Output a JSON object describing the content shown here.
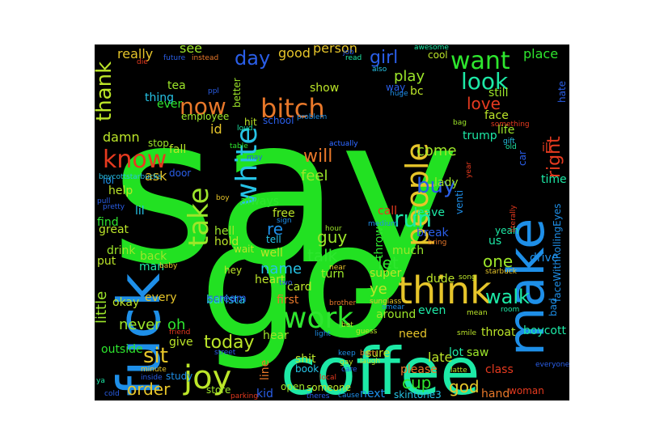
{
  "colors": {
    "background": "#000000",
    "page": "#ffffff",
    "palette": [
      "#2ee62e",
      "#1de9a6",
      "#bce629",
      "#e6c52a",
      "#e8782a",
      "#e63a1f",
      "#1e8fe8",
      "#2a5ee8",
      "#26c3e6",
      "#9de62a"
    ]
  },
  "words": [
    {
      "text": "say",
      "color": "#22e122"
    },
    {
      "text": "go",
      "color": "#22e122"
    },
    {
      "text": "coffee",
      "color": "#1de9a6"
    },
    {
      "text": "fuck",
      "color": "#1e8fe8"
    },
    {
      "text": "make",
      "color": "#1e8fe8"
    },
    {
      "text": "think",
      "color": "#e6c52a"
    },
    {
      "text": "people",
      "color": "#e6c52a"
    },
    {
      "text": "white",
      "color": "#26c3e6"
    },
    {
      "text": "take",
      "color": "#9de62a"
    },
    {
      "text": "work",
      "color": "#2ee62e"
    },
    {
      "text": "joy",
      "color": "#bce629"
    },
    {
      "text": "bitch",
      "color": "#e8782a"
    },
    {
      "text": "know",
      "color": "#e63a1f"
    },
    {
      "text": "want",
      "color": "#2ee62e"
    },
    {
      "text": "look",
      "color": "#1de9a6"
    },
    {
      "text": "now",
      "color": "#e8782a"
    },
    {
      "text": "run",
      "color": "#1de9a6"
    },
    {
      "text": "buy",
      "color": "#2a5ee8"
    },
    {
      "text": "sit",
      "color": "#e6c52a"
    },
    {
      "text": "right",
      "color": "#e63a1f"
    },
    {
      "text": "walk",
      "color": "#1de9a6"
    },
    {
      "text": "thank",
      "color": "#bce629"
    },
    {
      "text": "day",
      "color": "#2a5ee8"
    },
    {
      "text": "girl",
      "color": "#2a5ee8"
    },
    {
      "text": "love",
      "color": "#e63a1f"
    },
    {
      "text": "will",
      "color": "#e8782a"
    },
    {
      "text": "today",
      "color": "#bce629"
    },
    {
      "text": "order",
      "color": "#e6c52a"
    },
    {
      "text": "guy",
      "color": "#9de62a"
    },
    {
      "text": "talk",
      "color": "#2ee62e"
    },
    {
      "text": "let",
      "color": "#2ee62e"
    },
    {
      "text": "cup",
      "color": "#2ee62e"
    },
    {
      "text": "god",
      "color": "#e6c52a"
    },
    {
      "text": "place",
      "color": "#2ee62e"
    },
    {
      "text": "play",
      "color": "#9de62a"
    },
    {
      "text": "feel",
      "color": "#9de62a"
    },
    {
      "text": "come",
      "color": "#9de62a"
    },
    {
      "text": "name",
      "color": "#26c3e6"
    },
    {
      "text": "re",
      "color": "#1e8fe8"
    },
    {
      "text": "one",
      "color": "#9de62a"
    },
    {
      "text": "ye",
      "color": "#bce629"
    },
    {
      "text": "oh",
      "color": "#2ee62e"
    },
    {
      "text": "never",
      "color": "#9de62a"
    },
    {
      "text": "little",
      "color": "#9de62a"
    },
    {
      "text": "damn",
      "color": "#bce629"
    },
    {
      "text": "ask",
      "color": "#e6c52a"
    },
    {
      "text": "really",
      "color": "#e6c52a"
    },
    {
      "text": "see",
      "color": "#9de62a"
    },
    {
      "text": "good",
      "color": "#e6c52a"
    },
    {
      "text": "person",
      "color": "#e6c52a"
    },
    {
      "text": "id",
      "color": "#e6c52a"
    },
    {
      "text": "break",
      "color": "#2a5ee8"
    },
    {
      "text": "late",
      "color": "#bce629"
    },
    {
      "text": "hand",
      "color": "#e8782a"
    },
    {
      "text": "next",
      "color": "#1e8fe8"
    },
    {
      "text": "kid",
      "color": "#2a5ee8"
    },
    {
      "text": "boycott",
      "color": "#1de9a6"
    },
    {
      "text": "throat",
      "color": "#bce629"
    },
    {
      "text": "drive",
      "color": "#1e8fe8"
    },
    {
      "text": "lot",
      "color": "#1de9a6"
    },
    {
      "text": "us",
      "color": "#1de9a6"
    },
    {
      "text": "yeah",
      "color": "#1de9a6"
    },
    {
      "text": "line",
      "color": "#e8782a"
    },
    {
      "text": "trump",
      "color": "#1de9a6"
    },
    {
      "text": "barista",
      "color": "#26c3e6"
    },
    {
      "text": "scream",
      "color": "#2a5ee8"
    },
    {
      "text": "first",
      "color": "#e8782a"
    },
    {
      "text": "card",
      "color": "#bce629"
    },
    {
      "text": "hell",
      "color": "#9de62a"
    },
    {
      "text": "hold",
      "color": "#bce629"
    },
    {
      "text": "free",
      "color": "#bce629"
    },
    {
      "text": "tell",
      "color": "#26c3e6"
    },
    {
      "text": "well",
      "color": "#bce629"
    },
    {
      "text": "hey",
      "color": "#bce629"
    },
    {
      "text": "heart",
      "color": "#bce629"
    },
    {
      "text": "turn",
      "color": "#9de62a"
    },
    {
      "text": "much",
      "color": "#9de62a"
    },
    {
      "text": "super",
      "color": "#bce629"
    },
    {
      "text": "dude",
      "color": "#bce629"
    },
    {
      "text": "throw",
      "color": "#2ee62e"
    },
    {
      "text": "call",
      "color": "#e63a1f"
    },
    {
      "text": "leave",
      "color": "#1de9a6"
    },
    {
      "text": "venti",
      "color": "#1e8fe8"
    },
    {
      "text": "lady",
      "color": "#9de62a"
    },
    {
      "text": "even",
      "color": "#1de9a6"
    },
    {
      "text": "around",
      "color": "#9de62a"
    },
    {
      "text": "need",
      "color": "#e6c52a"
    },
    {
      "text": "please",
      "color": "#e8782a"
    },
    {
      "text": "sure",
      "color": "#bce629"
    },
    {
      "text": "saw",
      "color": "#9de62a"
    },
    {
      "text": "class",
      "color": "#e63a1f"
    },
    {
      "text": "woman",
      "color": "#e63a1f"
    },
    {
      "text": "life",
      "color": "#9de62a"
    },
    {
      "text": "time",
      "color": "#1de9a6"
    },
    {
      "text": "ill",
      "color": "#e63a1f"
    },
    {
      "text": "car",
      "color": "#2a5ee8"
    },
    {
      "text": "face",
      "color": "#bce629"
    },
    {
      "text": "still",
      "color": "#9de62a"
    },
    {
      "text": "bc",
      "color": "#bce629"
    },
    {
      "text": "way",
      "color": "#2a5ee8"
    },
    {
      "text": "hate",
      "color": "#2a5ee8"
    },
    {
      "text": "show",
      "color": "#bce629"
    },
    {
      "text": "cool",
      "color": "#bce629"
    },
    {
      "text": "employee",
      "color": "#9de62a"
    },
    {
      "text": "thing",
      "color": "#26c3e6"
    },
    {
      "text": "ever",
      "color": "#2ee62e"
    },
    {
      "text": "tea",
      "color": "#9de62a"
    },
    {
      "text": "better",
      "color": "#9de62a"
    },
    {
      "text": "hit",
      "color": "#bce629"
    },
    {
      "text": "school",
      "color": "#2a5ee8"
    },
    {
      "text": "stop",
      "color": "#9de62a"
    },
    {
      "text": "fall",
      "color": "#bce629"
    },
    {
      "text": "door",
      "color": "#2a5ee8"
    },
    {
      "text": "help",
      "color": "#bce629"
    },
    {
      "text": "lol",
      "color": "#1e8fe8"
    },
    {
      "text": "lil",
      "color": "#26c3e6"
    },
    {
      "text": "find",
      "color": "#2ee62e"
    },
    {
      "text": "great",
      "color": "#bce629"
    },
    {
      "text": "put",
      "color": "#bce629"
    },
    {
      "text": "back",
      "color": "#9de62a"
    },
    {
      "text": "drink",
      "color": "#9de62a"
    },
    {
      "text": "man",
      "color": "#1de9a6"
    },
    {
      "text": "okay",
      "color": "#bce629"
    },
    {
      "text": "every",
      "color": "#e6c52a"
    },
    {
      "text": "give",
      "color": "#bce629"
    },
    {
      "text": "outside",
      "color": "#2ee62e"
    },
    {
      "text": "study",
      "color": "#1e8fe8"
    },
    {
      "text": "store",
      "color": "#9de62a"
    },
    {
      "text": "wait",
      "color": "#bce629"
    },
    {
      "text": "hear",
      "color": "#9de62a"
    },
    {
      "text": "shit",
      "color": "#bce629"
    },
    {
      "text": "book",
      "color": "#26c3e6"
    },
    {
      "text": "open",
      "color": "#9de62a"
    },
    {
      "text": "someone",
      "color": "#bce629"
    },
    {
      "text": "skintone3",
      "color": "#26c3e6"
    },
    {
      "text": "always",
      "color": "#2ee62e"
    },
    {
      "text": "faceWithRollingEyes",
      "color": "#1e8fe8"
    },
    {
      "text": "bad",
      "color": "#1e8fe8"
    },
    {
      "text": "awesome",
      "color": "#1de9a6"
    },
    {
      "text": "also",
      "color": "#26c3e6"
    },
    {
      "text": "die",
      "color": "#e63a1f"
    },
    {
      "text": "future",
      "color": "#2a5ee8"
    },
    {
      "text": "instead",
      "color": "#e8782a"
    },
    {
      "text": "read",
      "color": "#1de9a6"
    },
    {
      "text": "job",
      "color": "#2a5ee8"
    },
    {
      "text": "ppl",
      "color": "#2a5ee8"
    },
    {
      "text": "loud",
      "color": "#1de9a6"
    },
    {
      "text": "table",
      "color": "#2ee62e"
    },
    {
      "text": "problem",
      "color": "#1e8fe8"
    },
    {
      "text": "something",
      "color": "#e63a1f"
    },
    {
      "text": "gift",
      "color": "#26c3e6"
    },
    {
      "text": "old",
      "color": "#1de9a6"
    },
    {
      "text": "bag",
      "color": "#9de62a"
    },
    {
      "text": "actually",
      "color": "#2a5ee8"
    },
    {
      "text": "huge",
      "color": "#1e8fe8"
    },
    {
      "text": "boycottstarbucks",
      "color": "#26c3e6"
    },
    {
      "text": "pull",
      "color": "#2a5ee8"
    },
    {
      "text": "pretty",
      "color": "#2a5ee8"
    },
    {
      "text": "boy",
      "color": "#e6c52a"
    },
    {
      "text": "sign",
      "color": "#1e8fe8"
    },
    {
      "text": "hour",
      "color": "#9de62a"
    },
    {
      "text": "medium",
      "color": "#1e8fe8"
    },
    {
      "text": "bring",
      "color": "#e8782a"
    },
    {
      "text": "baby",
      "color": "#e6c52a"
    },
    {
      "text": "near",
      "color": "#e6c52a"
    },
    {
      "text": "two",
      "color": "#2a5ee8"
    },
    {
      "text": "song",
      "color": "#bce629"
    },
    {
      "text": "brother",
      "color": "#e8782a"
    },
    {
      "text": "sunglass",
      "color": "#e6c52a"
    },
    {
      "text": "smear",
      "color": "#1e8fe8"
    },
    {
      "text": "mean",
      "color": "#bce629"
    },
    {
      "text": "room",
      "color": "#1de9a6"
    },
    {
      "text": "friend",
      "color": "#e63a1f"
    },
    {
      "text": "light",
      "color": "#1e8fe8"
    },
    {
      "text": "bet",
      "color": "#bce629"
    },
    {
      "text": "guess",
      "color": "#bce629"
    },
    {
      "text": "smile",
      "color": "#bce629"
    },
    {
      "text": "street",
      "color": "#2a5ee8"
    },
    {
      "text": "keep",
      "color": "#1e8fe8"
    },
    {
      "text": "gay",
      "color": "#bce629"
    },
    {
      "text": "care",
      "color": "#2a5ee8"
    },
    {
      "text": "burn",
      "color": "#e8782a"
    },
    {
      "text": "laugh",
      "color": "#bce629"
    },
    {
      "text": "latte",
      "color": "#bce629"
    },
    {
      "text": "everyone",
      "color": "#2a5ee8"
    },
    {
      "text": "minute",
      "color": "#e6c52a"
    },
    {
      "text": "inside",
      "color": "#2a5ee8"
    },
    {
      "text": "ya",
      "color": "#1de9a6"
    },
    {
      "text": "cold",
      "color": "#2a5ee8"
    },
    {
      "text": "parking",
      "color": "#e63a1f"
    },
    {
      "text": "theres",
      "color": "#2a5ee8"
    },
    {
      "text": "cause",
      "color": "#1e8fe8"
    },
    {
      "text": "local",
      "color": "#e63a1f"
    },
    {
      "text": "starbuck",
      "color": "#e6c52a"
    },
    {
      "text": "literally",
      "color": "#e63a1f"
    },
    {
      "text": "year",
      "color": "#e63a1f"
    },
    {
      "text": "may",
      "color": "#2a5ee8"
    },
    {
      "text": "actually",
      "color": "#2a5ee8"
    }
  ]
}
